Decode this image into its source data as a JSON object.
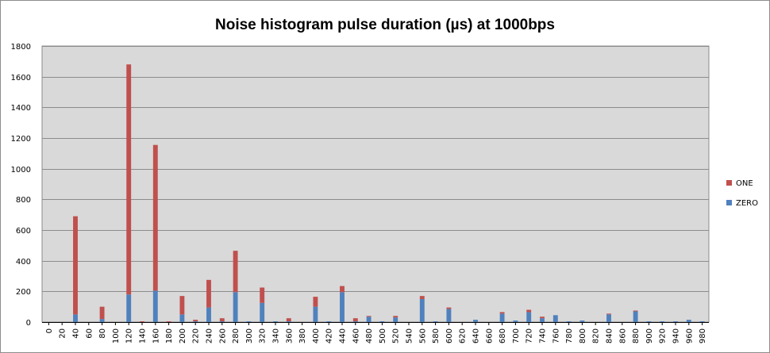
{
  "chart_data": {
    "type": "bar",
    "stacked": true,
    "title": "Noise histogram pulse duration (µs) at 1000bps",
    "xlabel": "",
    "ylabel": "",
    "ylim": [
      0,
      1800
    ],
    "y_ticks": [
      0,
      200,
      400,
      600,
      800,
      1000,
      1200,
      1400,
      1600,
      1800
    ],
    "grid": true,
    "legend_position": "right",
    "categories": [
      "0",
      "20",
      "40",
      "60",
      "80",
      "100",
      "120",
      "140",
      "160",
      "180",
      "200",
      "220",
      "240",
      "260",
      "280",
      "300",
      "320",
      "340",
      "360",
      "380",
      "400",
      "420",
      "440",
      "460",
      "480",
      "500",
      "520",
      "540",
      "560",
      "580",
      "600",
      "620",
      "640",
      "660",
      "680",
      "700",
      "720",
      "740",
      "760",
      "780",
      "800",
      "820",
      "840",
      "860",
      "880",
      "900",
      "920",
      "940",
      "960",
      "980"
    ],
    "series": [
      {
        "name": "ZERO",
        "color": "#4f81bd",
        "values": [
          0,
          0,
          50,
          0,
          20,
          0,
          180,
          0,
          205,
          0,
          50,
          5,
          95,
          5,
          195,
          5,
          125,
          5,
          5,
          0,
          100,
          5,
          195,
          5,
          35,
          5,
          30,
          0,
          150,
          5,
          85,
          0,
          15,
          0,
          55,
          10,
          65,
          25,
          45,
          5,
          10,
          0,
          50,
          0,
          70,
          5,
          5,
          5,
          15,
          5
        ]
      },
      {
        "name": "ONE",
        "color": "#c0504d",
        "values": [
          0,
          0,
          640,
          0,
          80,
          0,
          1500,
          5,
          950,
          5,
          120,
          10,
          180,
          20,
          270,
          0,
          100,
          0,
          20,
          0,
          65,
          0,
          40,
          20,
          5,
          0,
          10,
          0,
          20,
          0,
          10,
          0,
          0,
          0,
          10,
          0,
          15,
          10,
          0,
          0,
          0,
          0,
          5,
          0,
          5,
          0,
          0,
          0,
          0,
          0
        ]
      }
    ]
  }
}
